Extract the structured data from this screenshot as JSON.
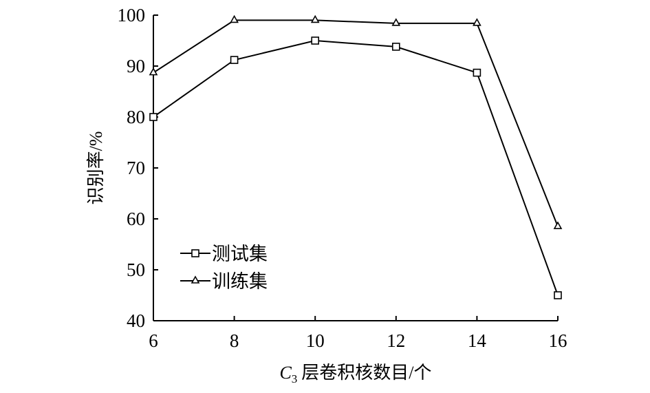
{
  "chart_data": {
    "type": "line",
    "x": [
      6,
      8,
      10,
      12,
      14,
      16
    ],
    "series": [
      {
        "name": "测试集",
        "marker": "square",
        "values": [
          80,
          91.2,
          95,
          93.8,
          88.7,
          45
        ]
      },
      {
        "name": "训练集",
        "marker": "triangle",
        "values": [
          88.7,
          99,
          99,
          98.4,
          98.4,
          58.5
        ]
      }
    ],
    "xlabel": {
      "symbol": "C",
      "subscript": "3",
      "text": "层卷积核数目/个"
    },
    "ylabel": "识别率/%",
    "xlim": [
      6,
      16
    ],
    "ylim": [
      40,
      100
    ],
    "xticks": [
      "6",
      "8",
      "10",
      "12",
      "14",
      "16"
    ],
    "yticks": [
      "40",
      "50",
      "60",
      "70",
      "80",
      "90",
      "100"
    ],
    "grid": false,
    "legend": "lower-left",
    "colors": {
      "line": "#000000",
      "marker_fill": "#ffffff"
    }
  }
}
